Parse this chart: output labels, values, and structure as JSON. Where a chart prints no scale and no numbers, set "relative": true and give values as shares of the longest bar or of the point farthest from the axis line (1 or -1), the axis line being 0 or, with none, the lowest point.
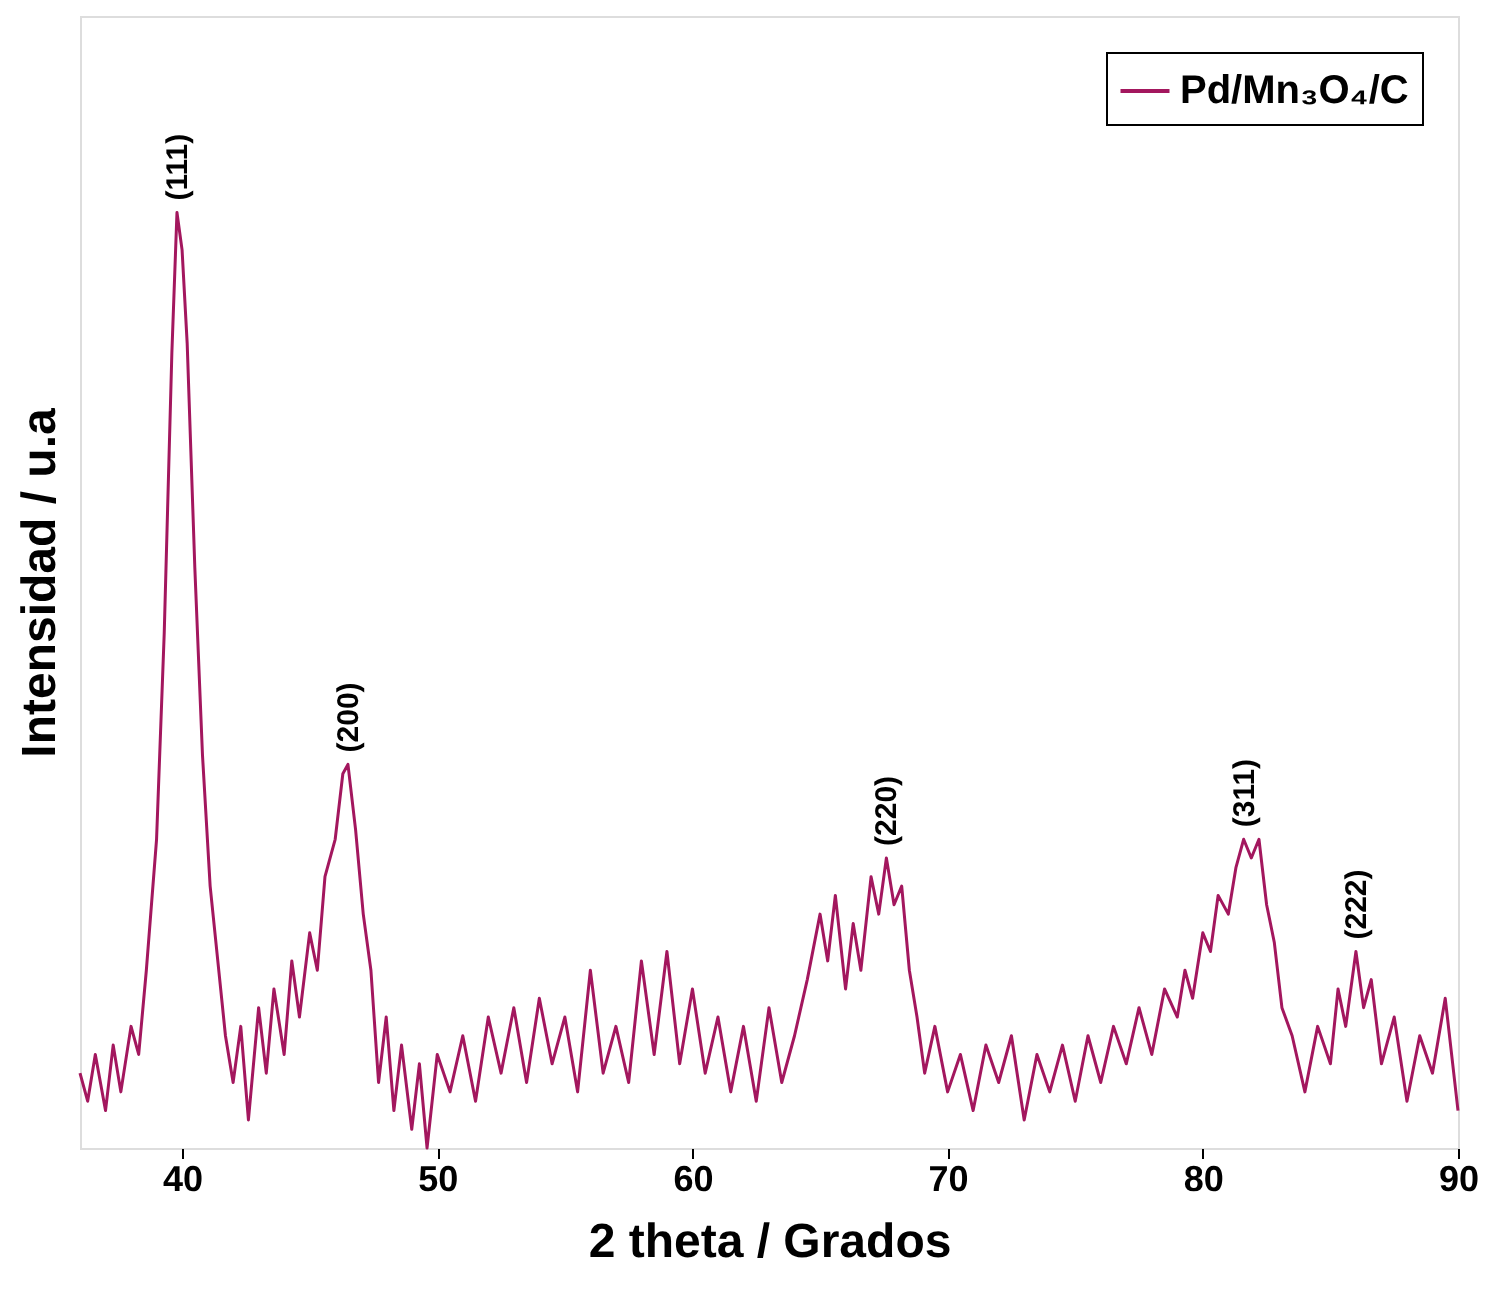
{
  "chart_data": {
    "type": "line",
    "xlabel": "2 theta / Grados",
    "ylabel": "Intensidad / u.a",
    "relative": true,
    "xlim": [
      36,
      90
    ],
    "xticks": [
      40,
      50,
      60,
      70,
      80,
      90
    ],
    "grid": false,
    "legend": "top right",
    "marker": "none",
    "line_style": "solid",
    "x": [
      36,
      36.3,
      36.6,
      37,
      37.3,
      37.6,
      38,
      38.3,
      38.6,
      39,
      39.3,
      39.6,
      39.8,
      40,
      40.2,
      40.5,
      40.8,
      41.1,
      41.4,
      41.7,
      42,
      42.3,
      42.6,
      43,
      43.3,
      43.6,
      44,
      44.3,
      44.6,
      45,
      45.3,
      45.6,
      46,
      46.3,
      46.5,
      46.8,
      47.1,
      47.4,
      47.7,
      48,
      48.3,
      48.6,
      49,
      49.3,
      49.6,
      50,
      50.5,
      51,
      51.5,
      52,
      52.5,
      53,
      53.5,
      54,
      54.5,
      55,
      55.5,
      56,
      56.5,
      57,
      57.5,
      58,
      58.5,
      59,
      59.5,
      60,
      60.5,
      61,
      61.5,
      62,
      62.5,
      63,
      63.5,
      64,
      64.5,
      65,
      65.3,
      65.6,
      66,
      66.3,
      66.6,
      67,
      67.3,
      67.6,
      67.9,
      68.2,
      68.5,
      68.8,
      69.1,
      69.5,
      70,
      70.5,
      71,
      71.5,
      72,
      72.5,
      73,
      73.5,
      74,
      74.5,
      75,
      75.5,
      76,
      76.5,
      77,
      77.5,
      78,
      78.5,
      79,
      79.3,
      79.6,
      80,
      80.3,
      80.6,
      81,
      81.3,
      81.6,
      81.9,
      82.2,
      82.5,
      82.8,
      83.1,
      83.5,
      84,
      84.5,
      85,
      85.3,
      85.6,
      86,
      86.3,
      86.6,
      87,
      87.5,
      88,
      88.5,
      89,
      89.5,
      90
    ],
    "series": [
      {
        "name": "Pd/Mn₃O₄/C",
        "color": "#a3175e",
        "values": [
          0.08,
          0.05,
          0.1,
          0.04,
          0.11,
          0.06,
          0.13,
          0.1,
          0.19,
          0.33,
          0.55,
          0.85,
          1.0,
          0.96,
          0.86,
          0.62,
          0.42,
          0.28,
          0.2,
          0.12,
          0.07,
          0.13,
          0.03,
          0.15,
          0.08,
          0.17,
          0.1,
          0.2,
          0.14,
          0.23,
          0.19,
          0.29,
          0.33,
          0.4,
          0.41,
          0.34,
          0.25,
          0.19,
          0.07,
          0.14,
          0.04,
          0.11,
          0.02,
          0.09,
          0.0,
          0.1,
          0.06,
          0.12,
          0.05,
          0.14,
          0.08,
          0.15,
          0.07,
          0.16,
          0.09,
          0.14,
          0.06,
          0.19,
          0.08,
          0.13,
          0.07,
          0.2,
          0.1,
          0.21,
          0.09,
          0.17,
          0.08,
          0.14,
          0.06,
          0.13,
          0.05,
          0.15,
          0.07,
          0.12,
          0.18,
          0.25,
          0.2,
          0.27,
          0.17,
          0.24,
          0.19,
          0.29,
          0.25,
          0.31,
          0.26,
          0.28,
          0.19,
          0.14,
          0.08,
          0.13,
          0.06,
          0.1,
          0.04,
          0.11,
          0.07,
          0.12,
          0.03,
          0.1,
          0.06,
          0.11,
          0.05,
          0.12,
          0.07,
          0.13,
          0.09,
          0.15,
          0.1,
          0.17,
          0.14,
          0.19,
          0.16,
          0.23,
          0.21,
          0.27,
          0.25,
          0.3,
          0.33,
          0.31,
          0.33,
          0.26,
          0.22,
          0.15,
          0.12,
          0.06,
          0.13,
          0.09,
          0.17,
          0.13,
          0.21,
          0.15,
          0.18,
          0.09,
          0.14,
          0.05,
          0.12,
          0.08,
          0.16,
          0.04
        ]
      }
    ],
    "annotations": [
      {
        "text": "(111)",
        "x": 39.8,
        "y": 1.0
      },
      {
        "text": "(200)",
        "x": 46.5,
        "y": 0.41
      },
      {
        "text": "(220)",
        "x": 67.6,
        "y": 0.31
      },
      {
        "text": "(311)",
        "x": 81.6,
        "y": 0.33
      },
      {
        "text": "(222)",
        "x": 86,
        "y": 0.21
      }
    ]
  }
}
